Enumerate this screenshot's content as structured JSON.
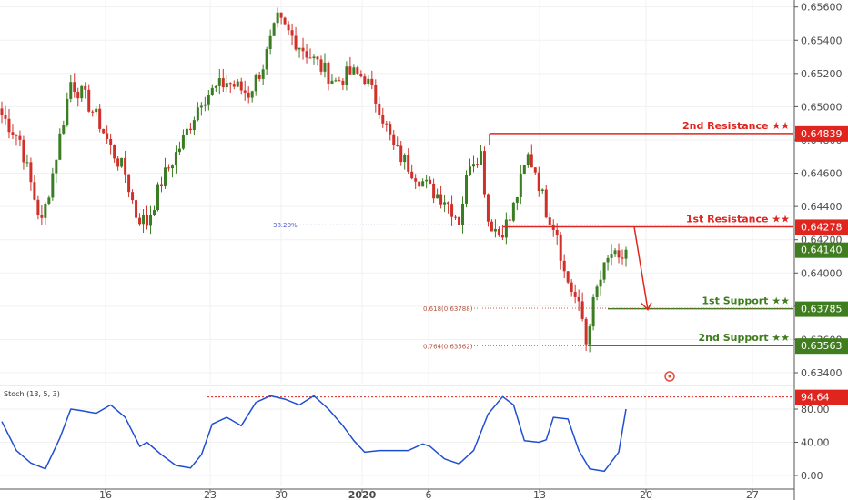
{
  "colors": {
    "up": "#3a7d22",
    "down": "#d0302a",
    "resistance": "#e0251f",
    "support": "#3f7d1f",
    "fib38": "#4d5acb",
    "fib61": "#b5503a",
    "stoch": "#1f4fd1",
    "grid": "#f1f1f1",
    "axis": "#555555"
  },
  "chart_data": [
    {
      "type": "candlestick",
      "title": "",
      "y_axis": {
        "ticks": [
          "0.65600",
          "0.65400",
          "0.65200",
          "0.65000",
          "0.64800",
          "0.64600",
          "0.64400",
          "0.64200",
          "0.64000",
          "0.63800",
          "0.63600",
          "0.63400"
        ],
        "ylim": [
          0.6327,
          0.6568
        ]
      },
      "x_axis": {
        "ticks": [
          "16",
          "23",
          "30",
          "2020",
          "6",
          "13",
          "20",
          "27"
        ]
      },
      "levels": [
        {
          "label": "2nd Resistance ★★",
          "value": 0.64839,
          "tag": "0.64839",
          "kind": "resistance"
        },
        {
          "label": "1st Resistance ★★",
          "value": 0.64278,
          "tag": "0.64278",
          "kind": "resistance"
        },
        {
          "label": "1st Support ★★",
          "value": 0.63785,
          "tag": "0.63785",
          "kind": "support"
        },
        {
          "label": "2nd Support ★★",
          "value": 0.63563,
          "tag": "0.63563",
          "kind": "support"
        }
      ],
      "current_price": {
        "value": 0.6414,
        "tag": "0.64140"
      },
      "fib_levels": [
        {
          "label": "38.20%",
          "value": 0.6429
        },
        {
          "label": "0.618(0.63788)",
          "value": 0.63788
        },
        {
          "label": "0.764(0.63562)",
          "value": 0.63562
        }
      ],
      "anchors": [
        [
          0,
          0.6495
        ],
        [
          5,
          0.648
        ],
        [
          9,
          0.6445
        ],
        [
          11,
          0.643
        ],
        [
          14,
          0.646
        ],
        [
          19,
          0.6515
        ],
        [
          23,
          0.6505
        ],
        [
          27,
          0.649
        ],
        [
          30,
          0.6475
        ],
        [
          34,
          0.646
        ],
        [
          37,
          0.6435
        ],
        [
          40,
          0.643
        ],
        [
          44,
          0.6455
        ],
        [
          50,
          0.648
        ],
        [
          55,
          0.6505
        ],
        [
          62,
          0.6515
        ],
        [
          68,
          0.6508
        ],
        [
          72,
          0.6525
        ],
        [
          76,
          0.6552
        ],
        [
          80,
          0.6542
        ],
        [
          86,
          0.6528
        ],
        [
          92,
          0.6515
        ],
        [
          96,
          0.652
        ],
        [
          100,
          0.6518
        ],
        [
          104,
          0.65
        ],
        [
          108,
          0.6475
        ],
        [
          113,
          0.6462
        ],
        [
          118,
          0.645
        ],
        [
          122,
          0.6445
        ],
        [
          126,
          0.6432
        ],
        [
          129,
          0.6468
        ],
        [
          132,
          0.6472
        ],
        [
          134,
          0.6432
        ],
        [
          137,
          0.6424
        ],
        [
          140,
          0.6432
        ],
        [
          143,
          0.6455
        ],
        [
          145,
          0.647
        ],
        [
          147,
          0.6462
        ],
        [
          150,
          0.6438
        ],
        [
          153,
          0.6425
        ],
        [
          155,
          0.64
        ],
        [
          158,
          0.6385
        ],
        [
          160,
          0.6372
        ],
        [
          161,
          0.6358
        ],
        [
          162,
          0.6372
        ],
        [
          164,
          0.639
        ],
        [
          166,
          0.6402
        ],
        [
          168,
          0.6412
        ],
        [
          170,
          0.6405
        ],
        [
          172,
          0.6414
        ]
      ],
      "candle_count": 173
    },
    {
      "type": "line",
      "title": "Stoch (13, 5, 3)",
      "series": [
        {
          "name": "Stoch (13, 5, 3)",
          "x": [
            0,
            4,
            8,
            12,
            16,
            19,
            22,
            26,
            30,
            34,
            38,
            40,
            44,
            48,
            52,
            55,
            58,
            62,
            66,
            70,
            74,
            78,
            82,
            86,
            90,
            94,
            97,
            100,
            104,
            108,
            112,
            116,
            118,
            122,
            126,
            130,
            134,
            138,
            141,
            144,
            148,
            150,
            152,
            156,
            159,
            162,
            166,
            170,
            172
          ],
          "values": [
            65,
            30,
            15,
            8,
            45,
            80,
            78,
            75,
            85,
            70,
            35,
            40,
            25,
            12,
            9,
            25,
            62,
            70,
            60,
            88,
            96,
            92,
            85,
            96,
            80,
            60,
            42,
            28,
            30,
            30,
            30,
            38,
            35,
            20,
            14,
            30,
            74,
            95,
            85,
            42,
            40,
            43,
            70,
            68,
            30,
            8,
            5,
            28,
            80
          ]
        }
      ],
      "ylim": [
        0,
        100
      ],
      "y_ticks": [
        "80.00",
        "40.00",
        "0.00"
      ],
      "level": {
        "value": 94.64,
        "tag": "94.64"
      }
    }
  ]
}
